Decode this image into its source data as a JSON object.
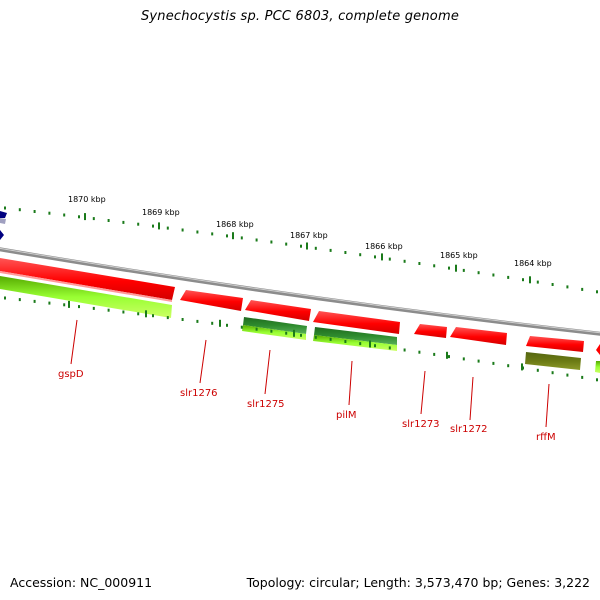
{
  "title": "Synechocystis sp. PCC 6803, complete genome",
  "footer": {
    "accession": "Accession: NC_000911",
    "topology": "Topology: circular; Length: 3,573,470 bp; Genes: 3,222"
  },
  "ruler": {
    "ticks": [
      "1870 kbp",
      "1869 kbp",
      "1868 kbp",
      "1867 kbp",
      "1866 kbp",
      "1865 kbp",
      "1864 kbp"
    ]
  },
  "genes": [
    {
      "name": "gspD"
    },
    {
      "name": "slr1276"
    },
    {
      "name": "slr1275"
    },
    {
      "name": "pilM"
    },
    {
      "name": "slr1273"
    },
    {
      "name": "slr1272"
    },
    {
      "name": "rffM"
    }
  ],
  "colors": {
    "cds": "#ff0000",
    "feature_green_light": "#99ff33",
    "feature_green_dark": "#2e8b2e",
    "feature_olive": "#6b7a14",
    "label": "#cc0000",
    "backbone": "#888888",
    "tick": "#1a7a1a",
    "other_strand": "#000080"
  }
}
